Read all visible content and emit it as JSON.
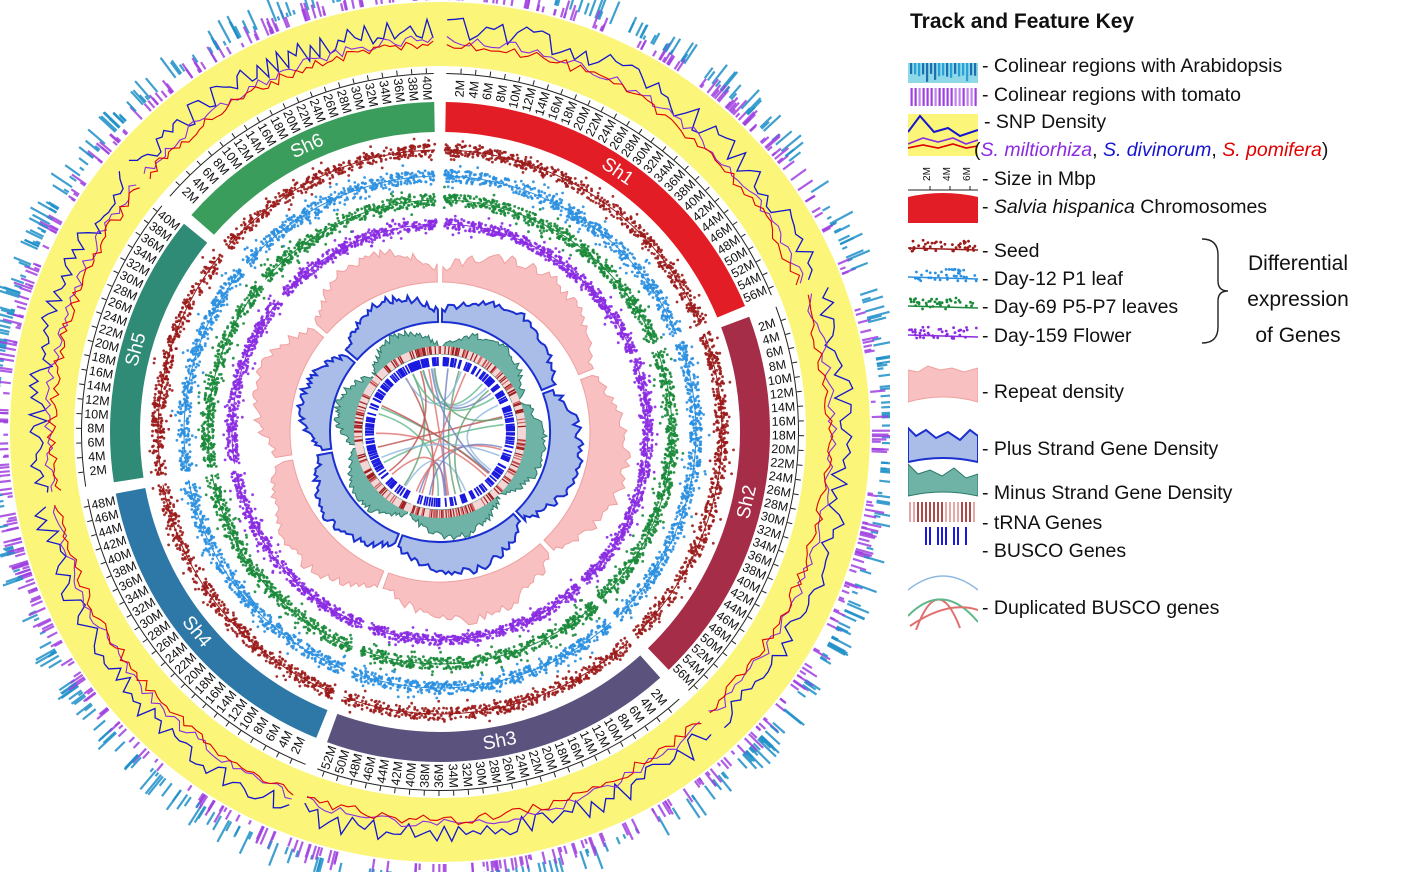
{
  "chromosomes": [
    {
      "name": "Sh1",
      "size": 57,
      "color": "#e21d25",
      "ticks": [
        "2M",
        "4M",
        "6M",
        "8M",
        "10M",
        "12M",
        "14M",
        "16M",
        "18M",
        "20M",
        "22M",
        "24M",
        "26M",
        "28M",
        "30M",
        "32M",
        "34M",
        "36M",
        "38M",
        "40M",
        "42M",
        "44M",
        "46M",
        "48M",
        "50M",
        "52M",
        "54M",
        "56M"
      ]
    },
    {
      "name": "Sh2",
      "size": 57,
      "color": "#a52d47",
      "ticks": [
        "2M",
        "4M",
        "6M",
        "8M",
        "10M",
        "12M",
        "14M",
        "16M",
        "18M",
        "20M",
        "22M",
        "24M",
        "26M",
        "28M",
        "30M",
        "32M",
        "34M",
        "36M",
        "38M",
        "40M",
        "42M",
        "44M",
        "46M",
        "48M",
        "50M",
        "52M",
        "54M",
        "56M"
      ]
    },
    {
      "name": "Sh3",
      "size": 53,
      "color": "#5c527e",
      "ticks": [
        "2M",
        "4M",
        "6M",
        "8M",
        "10M",
        "12M",
        "14M",
        "16M",
        "18M",
        "20M",
        "22M",
        "24M",
        "26M",
        "28M",
        "30M",
        "32M",
        "34M",
        "36M",
        "38M",
        "40M",
        "42M",
        "44M",
        "46M",
        "48M",
        "50M",
        "52M"
      ]
    },
    {
      "name": "Sh4",
      "size": 49,
      "color": "#2e78a8",
      "ticks": [
        "2M",
        "4M",
        "6M",
        "8M",
        "10M",
        "12M",
        "14M",
        "16M",
        "18M",
        "20M",
        "22M",
        "24M",
        "26M",
        "28M",
        "30M",
        "32M",
        "34M",
        "36M",
        "38M",
        "40M",
        "42M",
        "44M",
        "46M",
        "48M"
      ]
    },
    {
      "name": "Sh5",
      "size": 41,
      "color": "#2f8a76",
      "ticks": [
        "2M",
        "4M",
        "6M",
        "8M",
        "10M",
        "12M",
        "14M",
        "16M",
        "18M",
        "20M",
        "22M",
        "24M",
        "26M",
        "28M",
        "30M",
        "32M",
        "34M",
        "36M",
        "38M",
        "40M"
      ]
    },
    {
      "name": "Sh6",
      "size": 41,
      "color": "#3a9d5b",
      "ticks": [
        "2M",
        "4M",
        "6M",
        "8M",
        "10M",
        "12M",
        "14M",
        "16M",
        "18M",
        "20M",
        "22M",
        "24M",
        "26M",
        "28M",
        "30M",
        "32M",
        "34M",
        "36M",
        "38M",
        "40M"
      ]
    }
  ],
  "tracks": {
    "seed_color": "#9b1a1a",
    "leaf_color": "#2a8fe0",
    "leaves_color": "#1a8a3a",
    "flower_color": "#8a2be2",
    "repeat_color": "#f8c0c0",
    "plus_color": "#1a2fd0",
    "minus_color": "#2a8a7a",
    "snp_bg": "#fbf57a",
    "arabidopsis_color": "#1e90c8",
    "tomato_color": "#a040e0"
  },
  "legend": {
    "title": "Track and Feature Key",
    "items": [
      {
        "label": "- Colinear regions with Arabidopsis"
      },
      {
        "label": "- Colinear regions with tomato"
      },
      {
        "label": "- SNP Density"
      },
      {
        "label_open": "(",
        "sp1": "S. miltiorhiza",
        "sep1": ", ",
        "sp2": "S. divinorum",
        "sep2": ", ",
        "sp3": "S. pomifera",
        "label_close": ")"
      },
      {
        "label": "- Size in Mbp"
      },
      {
        "label_prefix": "- ",
        "label_italic": "Salvia hispanica",
        "label_suffix": " Chromosomes"
      },
      {
        "label": "- Seed"
      },
      {
        "label": "- Day-12 P1 leaf"
      },
      {
        "label": "- Day-69 P5-P7 leaves"
      },
      {
        "label": "- Day-159 Flower"
      },
      {
        "label": "- Repeat density"
      },
      {
        "label": "- Plus Strand Gene Density"
      },
      {
        "label": "- Minus Strand Gene Density"
      },
      {
        "label": "- tRNA Genes"
      },
      {
        "label": "- BUSCO Genes"
      },
      {
        "label": "- Duplicated BUSCO genes"
      }
    ],
    "diff_expr": [
      "Differential",
      "expression",
      "of Genes"
    ],
    "size_ticks": [
      "2M",
      "4M",
      "6M"
    ]
  }
}
